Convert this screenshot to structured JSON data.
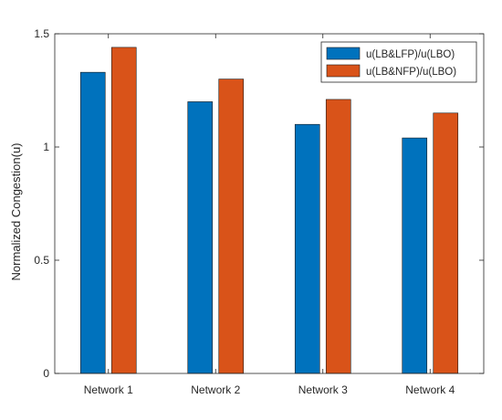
{
  "chart_data": {
    "type": "bar",
    "title": "",
    "xlabel": "",
    "ylabel": "Normalized Congestion(u)",
    "categories": [
      "Network 1",
      "Network 2",
      "Network 3",
      "Network 4"
    ],
    "series": [
      {
        "name": "u(LB&LFP)/u(LBO)",
        "color": "#0072BD",
        "values": [
          1.33,
          1.2,
          1.1,
          1.04
        ]
      },
      {
        "name": "u(LB&NFP)/u(LBO)",
        "color": "#D95319",
        "values": [
          1.44,
          1.3,
          1.21,
          1.15
        ]
      }
    ],
    "ylim": [
      0,
      1.5
    ],
    "yticks": [
      0,
      0.5,
      1,
      1.5
    ],
    "ytick_labels": [
      "0",
      "0.5",
      "1",
      "1.5"
    ],
    "grid": false,
    "legend_position": "top-right"
  }
}
